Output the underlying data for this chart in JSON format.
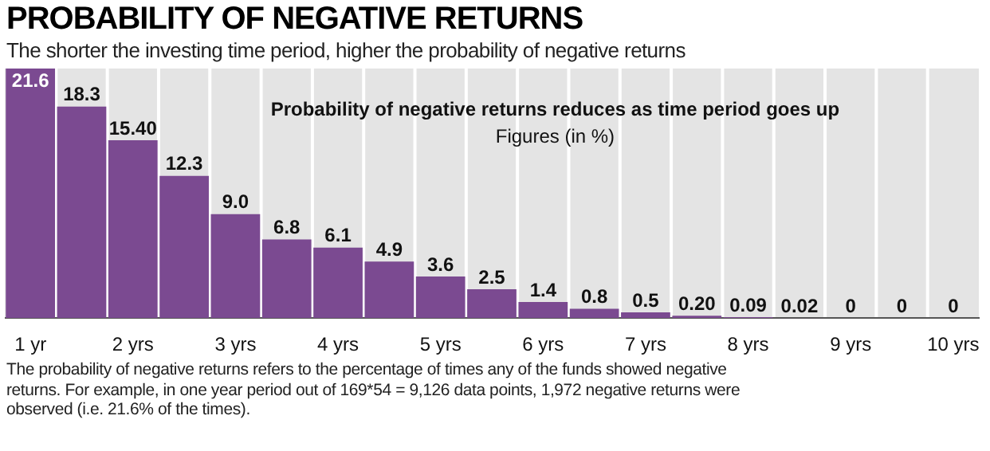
{
  "chart_data": {
    "type": "bar",
    "title": "PROBABILITY OF NEGATIVE RETURNS",
    "subtitle": "The shorter the investing time period, higher the probability of negative returns",
    "categories": [
      "1 yr",
      null,
      "2 yrs",
      null,
      "3 yrs",
      null,
      "4 yrs",
      null,
      "5 yrs",
      null,
      "6 yrs",
      null,
      "7 yrs",
      null,
      "8 yrs",
      null,
      "9 yrs",
      null,
      "10 yrs"
    ],
    "values": [
      21.6,
      18.3,
      15.4,
      12.3,
      9.0,
      6.8,
      6.1,
      4.9,
      3.6,
      2.5,
      1.4,
      0.8,
      0.5,
      0.2,
      0.09,
      0.02,
      0,
      0,
      0
    ],
    "value_labels": [
      "21.6",
      "18.3",
      "15.40",
      "12.3",
      "9.0",
      "6.8",
      "6.1",
      "4.9",
      "3.6",
      "2.5",
      "1.4",
      "0.8",
      "0.5",
      "0.20",
      "0.09",
      "0.02",
      "0",
      "0",
      "0"
    ],
    "color": "#7b4a91",
    "annotations": [
      "Probability of negative returns reduces as time period goes up",
      "Figures (in %)",
      "The probability of negative returns refers to the percentage of times any of the funds showed negative returns. For example, in one year period out of 169*54 = 9,126 data points, 1,972 negative returns were observed (i.e. 21.6% of the times)."
    ]
  }
}
